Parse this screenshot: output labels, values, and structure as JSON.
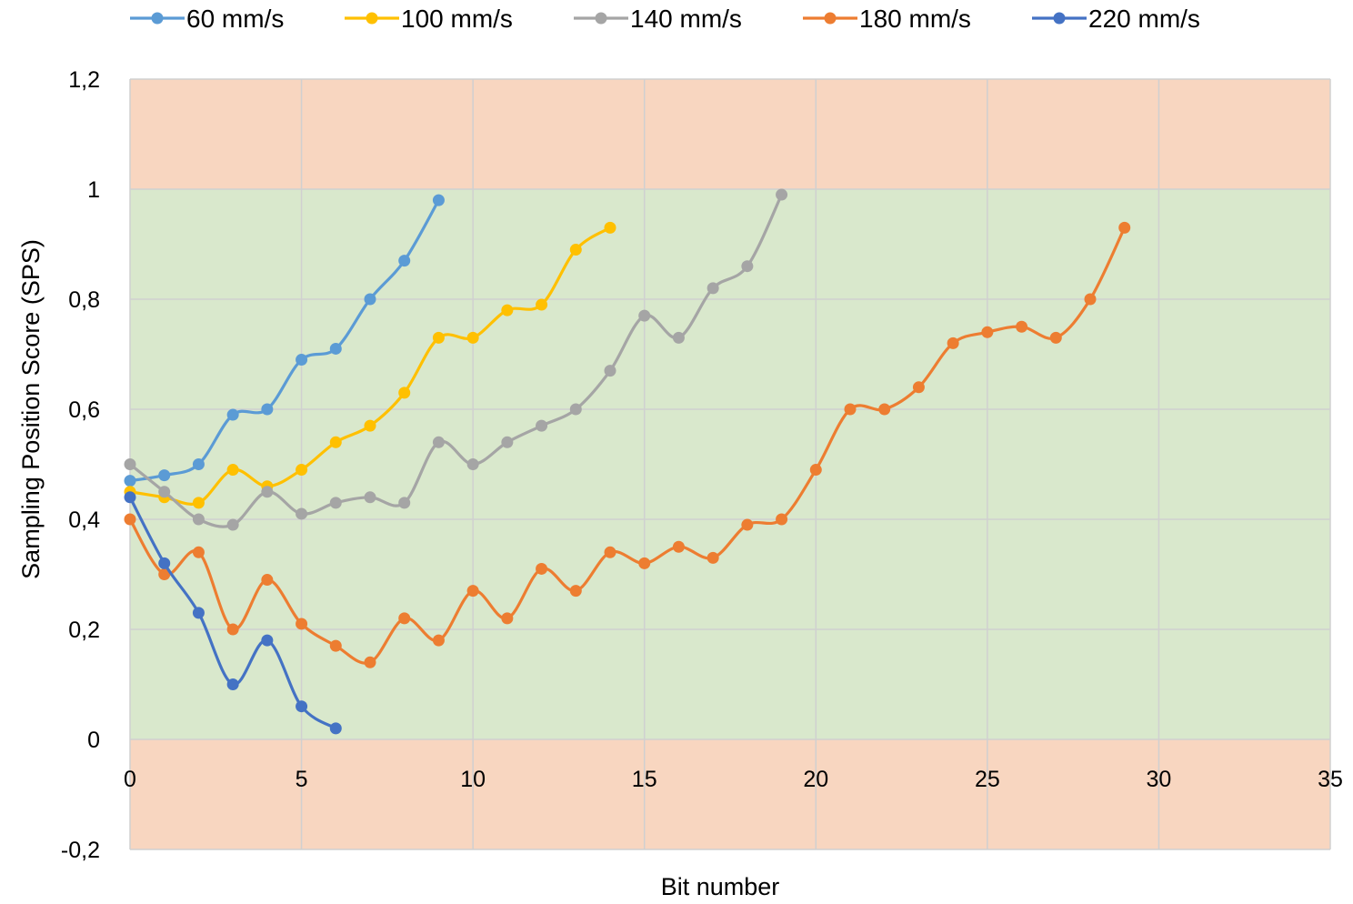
{
  "chart_data": {
    "type": "line",
    "title": "",
    "xlabel": "Bit number",
    "ylabel": "Sampling Position Score (SPS)",
    "xlim": [
      0,
      35
    ],
    "ylim": [
      -0.2,
      1.2
    ],
    "x_ticks": [
      0,
      5,
      10,
      15,
      20,
      25,
      30,
      35
    ],
    "y_ticks": [
      -0.2,
      0,
      0.2,
      0.4,
      0.6,
      0.8,
      1,
      1.2
    ],
    "x_tick_labels": [
      "0",
      "5",
      "10",
      "15",
      "20",
      "25",
      "30",
      "35"
    ],
    "y_tick_labels": [
      "-0,2",
      "0",
      "0,2",
      "0,4",
      "0,6",
      "0,8",
      "1",
      "1,2"
    ],
    "grid": true,
    "smooth": true,
    "legend_position": "top",
    "bands": [
      {
        "from": 1.0,
        "to": 1.2,
        "color": "#f8d6c0"
      },
      {
        "from": 0.0,
        "to": 1.0,
        "color": "#d9e8cc"
      },
      {
        "from": -0.2,
        "to": 0.0,
        "color": "#f8d6c0"
      }
    ],
    "series": [
      {
        "name": "60 mm/s",
        "color": "#5b9bd5",
        "x": [
          0,
          1,
          2,
          3,
          4,
          5,
          6,
          7,
          8,
          9
        ],
        "y": [
          0.47,
          0.48,
          0.5,
          0.59,
          0.6,
          0.69,
          0.71,
          0.8,
          0.87,
          0.98
        ]
      },
      {
        "name": "100 mm/s",
        "color": "#ffc000",
        "x": [
          0,
          1,
          2,
          3,
          4,
          5,
          6,
          7,
          8,
          9,
          10,
          11,
          12,
          13,
          14
        ],
        "y": [
          0.45,
          0.44,
          0.43,
          0.49,
          0.46,
          0.49,
          0.54,
          0.57,
          0.63,
          0.73,
          0.73,
          0.78,
          0.79,
          0.89,
          0.93
        ]
      },
      {
        "name": "140 mm/s",
        "color": "#a5a5a5",
        "x": [
          0,
          1,
          2,
          3,
          4,
          5,
          6,
          7,
          8,
          9,
          10,
          11,
          12,
          13,
          14,
          15,
          16,
          17,
          18,
          19
        ],
        "y": [
          0.5,
          0.45,
          0.4,
          0.39,
          0.45,
          0.41,
          0.43,
          0.44,
          0.43,
          0.54,
          0.5,
          0.54,
          0.57,
          0.6,
          0.67,
          0.77,
          0.73,
          0.82,
          0.86,
          0.99
        ]
      },
      {
        "name": "180 mm/s",
        "color": "#ed7d31",
        "x": [
          0,
          1,
          2,
          3,
          4,
          5,
          6,
          7,
          8,
          9,
          10,
          11,
          12,
          13,
          14,
          15,
          16,
          17,
          18,
          19,
          20,
          21,
          22,
          23,
          24,
          25,
          26,
          27,
          28,
          29
        ],
        "y": [
          0.4,
          0.3,
          0.34,
          0.2,
          0.29,
          0.21,
          0.17,
          0.14,
          0.22,
          0.18,
          0.27,
          0.22,
          0.31,
          0.27,
          0.34,
          0.32,
          0.35,
          0.33,
          0.39,
          0.4,
          0.49,
          0.6,
          0.6,
          0.64,
          0.72,
          0.74,
          0.75,
          0.73,
          0.8,
          0.93
        ]
      },
      {
        "name": "220 mm/s",
        "color": "#4472c4",
        "x": [
          0,
          1,
          2,
          3,
          4,
          5,
          6
        ],
        "y": [
          0.44,
          0.32,
          0.23,
          0.1,
          0.18,
          0.06,
          0.02
        ]
      }
    ]
  }
}
